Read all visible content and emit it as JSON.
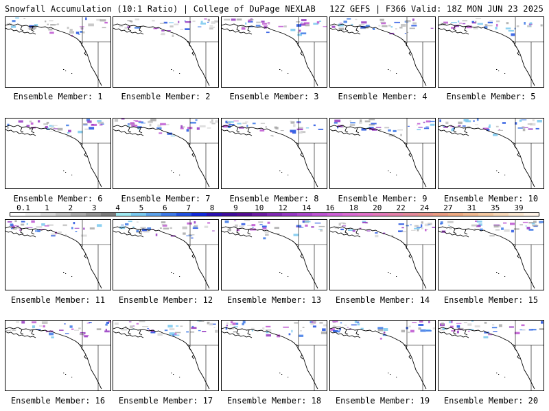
{
  "header": {
    "left_title": "Snowfall Accumulation (10:1 Ratio) | College of DuPage NEXLAB",
    "right_title": "12Z GEFS | F366 Valid: 18Z MON JUN 23 2025"
  },
  "colorbar": {
    "labels": [
      "0.1",
      "1",
      "2",
      "3",
      "4",
      "5",
      "6",
      "7",
      "8",
      "9",
      "10",
      "12",
      "14",
      "16",
      "18",
      "20",
      "22",
      "24",
      "27",
      "31",
      "35",
      "39"
    ],
    "colors": [
      "#ffffff",
      "#f0f0f0",
      "#d8d8d8",
      "#c0c0c0",
      "#a8a8a8",
      "#909090",
      "#7a7a7a",
      "#9ee8f0",
      "#78c8ee",
      "#5aa0e8",
      "#3c78e6",
      "#2050e0",
      "#1028d8",
      "#2a10b0",
      "#3e0c98",
      "#520c90",
      "#6a1aa0",
      "#7e28b0",
      "#9436c0",
      "#a844c8",
      "#bc52d0",
      "#cc60d4",
      "#d86ad0",
      "#e070c8",
      "#e278b8",
      "#e280a8",
      "#e28898",
      "#e49088",
      "#e89a80",
      "#eca880",
      "#f0b890",
      "#f4c8a0",
      "#f8d8b8",
      "#fce8d0",
      "#fff4e8"
    ]
  },
  "members": [
    {
      "caption": "Ensemble Member: 1"
    },
    {
      "caption": "Ensemble Member: 2"
    },
    {
      "caption": "Ensemble Member: 3"
    },
    {
      "caption": "Ensemble Member: 4"
    },
    {
      "caption": "Ensemble Member: 5"
    },
    {
      "caption": "Ensemble Member: 6"
    },
    {
      "caption": "Ensemble Member: 7"
    },
    {
      "caption": "Ensemble Member: 8"
    },
    {
      "caption": "Ensemble Member: 9"
    },
    {
      "caption": "Ensemble Member: 10"
    },
    {
      "caption": "Ensemble Member: 11"
    },
    {
      "caption": "Ensemble Member: 12"
    },
    {
      "caption": "Ensemble Member: 13"
    },
    {
      "caption": "Ensemble Member: 14"
    },
    {
      "caption": "Ensemble Member: 15"
    },
    {
      "caption": "Ensemble Member: 16"
    },
    {
      "caption": "Ensemble Member: 17"
    },
    {
      "caption": "Ensemble Member: 18"
    },
    {
      "caption": "Ensemble Member: 19"
    },
    {
      "caption": "Ensemble Member: 20"
    }
  ]
}
